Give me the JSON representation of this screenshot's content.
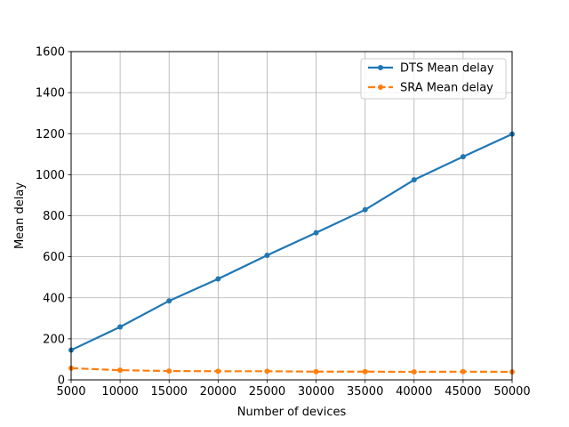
{
  "chart_data": {
    "type": "line",
    "title": "",
    "xlabel": "Number of devices",
    "ylabel": "Mean delay",
    "x": [
      5000,
      10000,
      15000,
      20000,
      25000,
      30000,
      35000,
      40000,
      45000,
      50000
    ],
    "xlim": [
      5000,
      50000
    ],
    "ylim": [
      0,
      1600
    ],
    "xticks": [
      5000,
      10000,
      15000,
      20000,
      25000,
      30000,
      35000,
      40000,
      45000,
      50000
    ],
    "yticks": [
      0,
      200,
      400,
      600,
      800,
      1000,
      1200,
      1400,
      1600
    ],
    "grid": true,
    "legend_position": "top-right",
    "series": [
      {
        "name": "DTS Mean delay",
        "color": "#1f77b4",
        "line_style": "solid",
        "values": [
          145,
          258,
          385,
          492,
          607,
          717,
          829,
          975,
          1088,
          1198
        ]
      },
      {
        "name": "SRA Mean delay",
        "color": "#ff7f0e",
        "line_style": "dashed",
        "values": [
          57,
          47,
          43,
          42,
          42,
          40,
          40,
          39,
          40,
          39
        ]
      }
    ]
  }
}
